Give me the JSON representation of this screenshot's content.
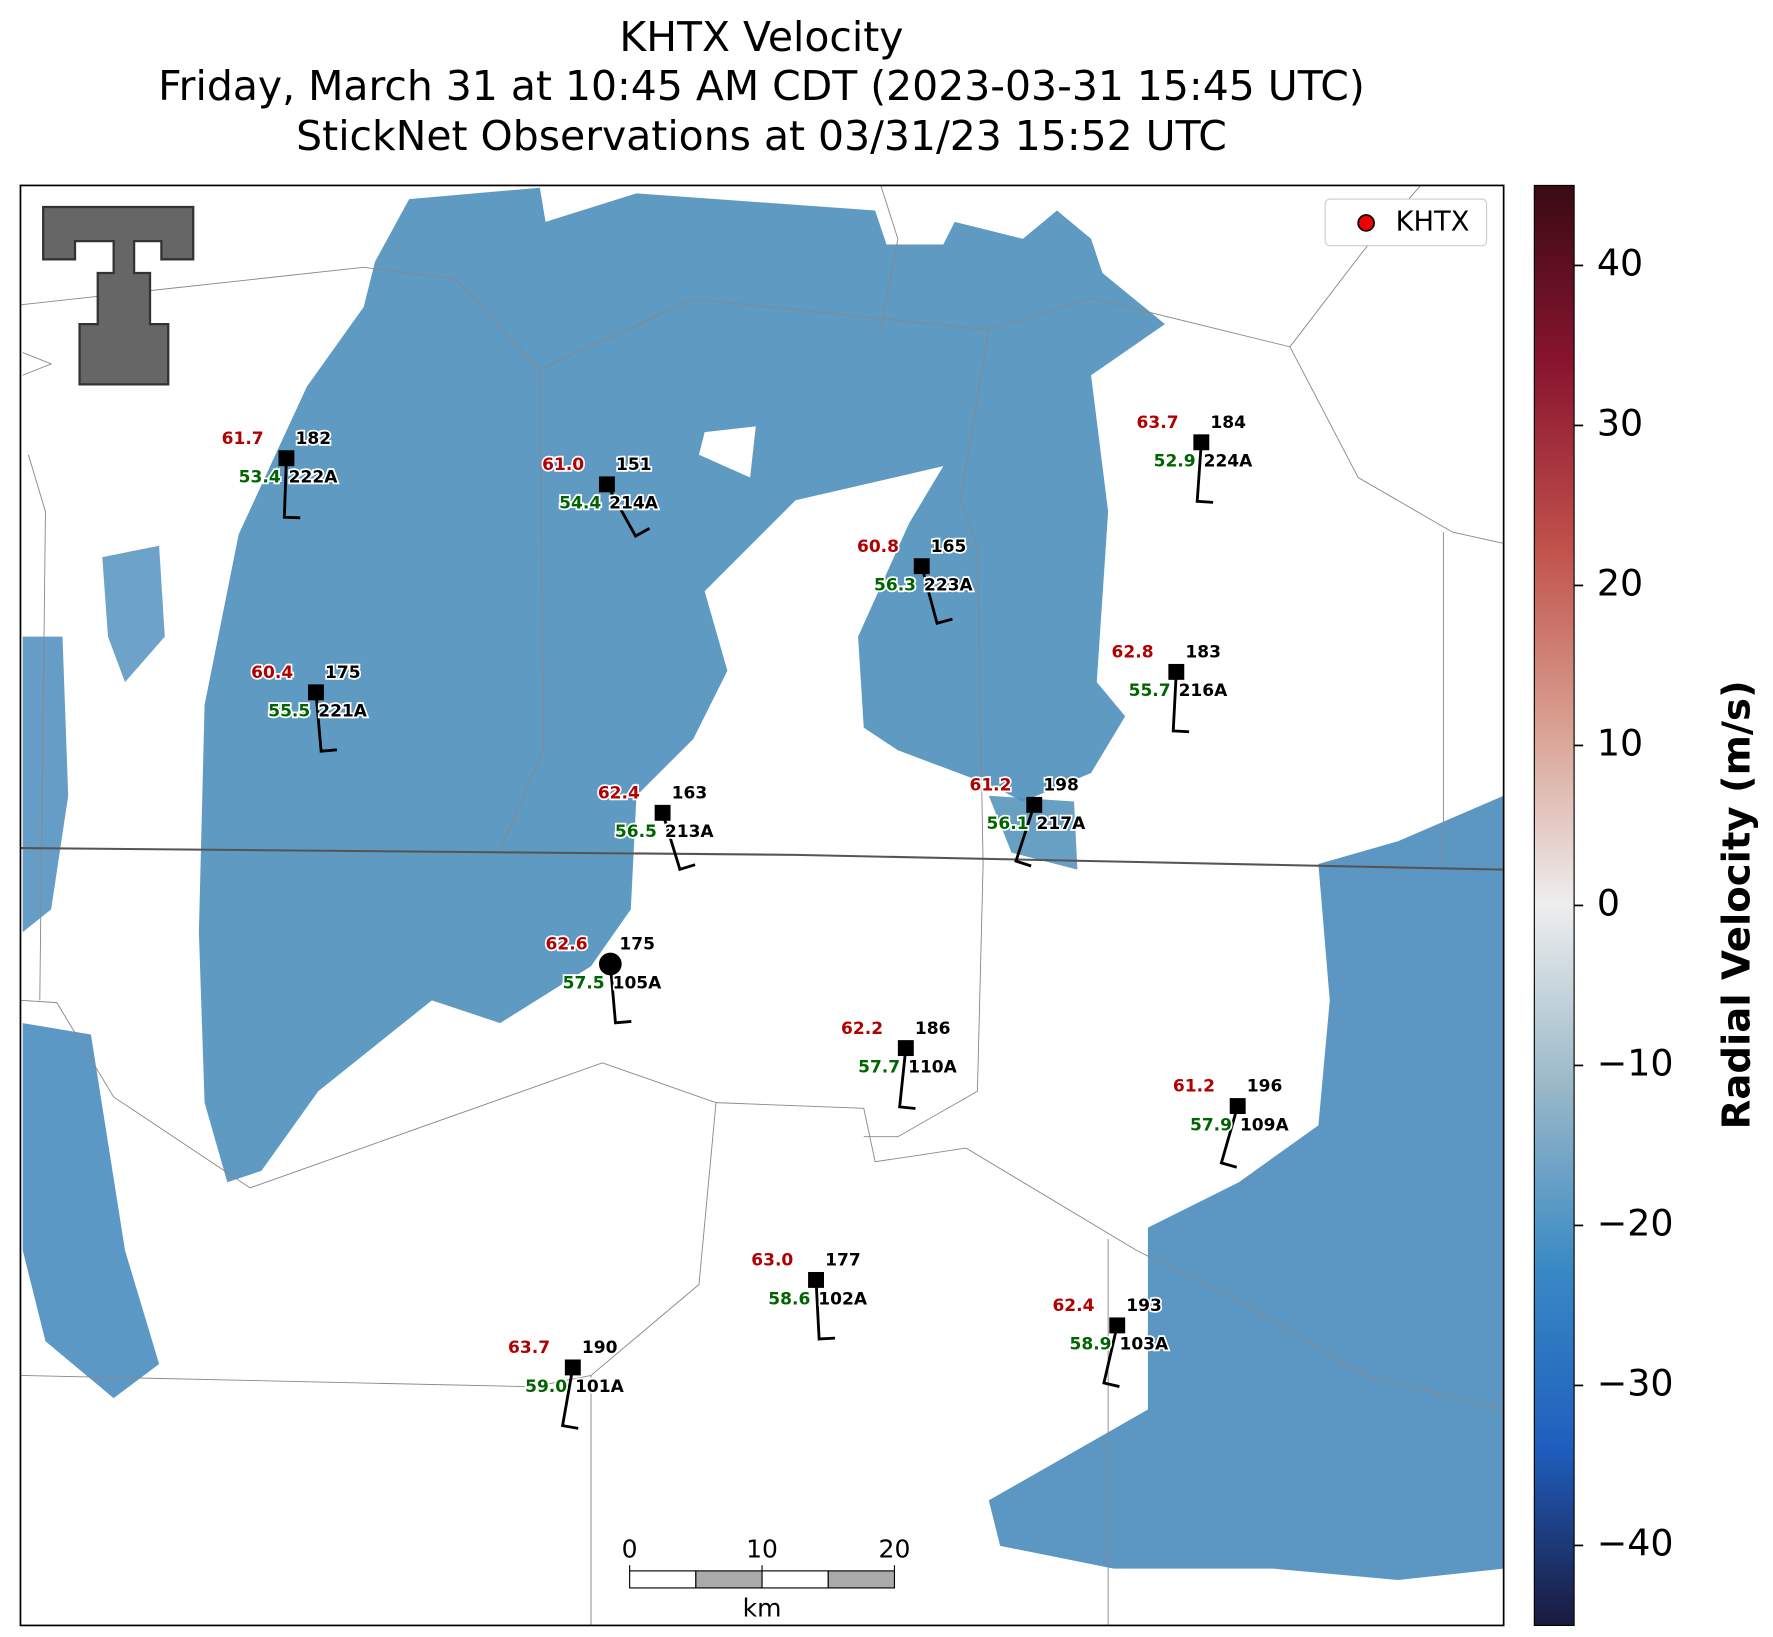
{
  "title": [
    "KHTX Velocity",
    "Friday, March 31 at 10:45 AM CDT (2023-03-31 15:45 UTC)",
    "StickNet Observations at 03/31/23 15:52 UTC"
  ],
  "legend": "KHTX",
  "stations": [
    {
      "id": "222A",
      "temperature": 61.7,
      "dewpoint": 53.4,
      "direction": 182
    },
    {
      "id": "214A",
      "temperature": 61.0,
      "temperature_label": "61.0",
      "dewpoint": 54.4,
      "direction": 151
    },
    {
      "id": "223A",
      "temperature": 60.8,
      "dewpoint": 56.3,
      "direction": 165
    },
    {
      "id": "224A",
      "temperature": 63.7,
      "dewpoint": 52.9,
      "direction": 184
    },
    {
      "id": "221A",
      "temperature": 60.4,
      "dewpoint": 55.5,
      "direction": 175
    },
    {
      "id": "216A",
      "temperature": 62.8,
      "dewpoint": 55.7,
      "direction": 183
    },
    {
      "id": "213A",
      "temperature": 62.4,
      "dewpoint": 56.5,
      "direction": 163
    },
    {
      "id": "217A",
      "temperature": 61.2,
      "dewpoint": 56.1,
      "direction": 198
    },
    {
      "id": "105A",
      "temperature": 62.6,
      "dewpoint": 57.5,
      "direction": 175
    },
    {
      "id": "110A",
      "temperature": 62.2,
      "dewpoint": 57.7,
      "direction": 186
    },
    {
      "id": "109A",
      "temperature": 61.2,
      "dewpoint": 57.9,
      "direction": 196
    },
    {
      "id": "102A",
      "temperature": 63.0,
      "temperature_label": "63.0",
      "dewpoint": 58.6,
      "direction": 177
    },
    {
      "id": "103A",
      "temperature": 62.4,
      "dewpoint": 58.9,
      "direction": 193
    },
    {
      "id": "101A",
      "temperature": 63.7,
      "dewpoint": 59.0,
      "dewpoint_label": "59.0",
      "direction": 190
    }
  ],
  "colorbar": {
    "label": "Radial Velocity (m/s)",
    "lim": [
      -45,
      45
    ],
    "ticks": [
      {
        "value": -40,
        "label": "−40"
      },
      {
        "value": -30,
        "label": "−30"
      },
      {
        "value": -20,
        "label": "−20"
      },
      {
        "value": -10,
        "label": "−10"
      },
      0,
      10,
      20,
      30,
      40
    ],
    "colors": [
      "#1a1a3e",
      "#1f5fbf",
      "#3a8ac4",
      "#9ab8c8",
      "#eeeeee",
      "#d8a090",
      "#c0504a",
      "#8a1530",
      "#3a0a14"
    ]
  },
  "scale_bar": {
    "ticks": [
      0,
      10,
      20
    ],
    "unit": "km"
  }
}
